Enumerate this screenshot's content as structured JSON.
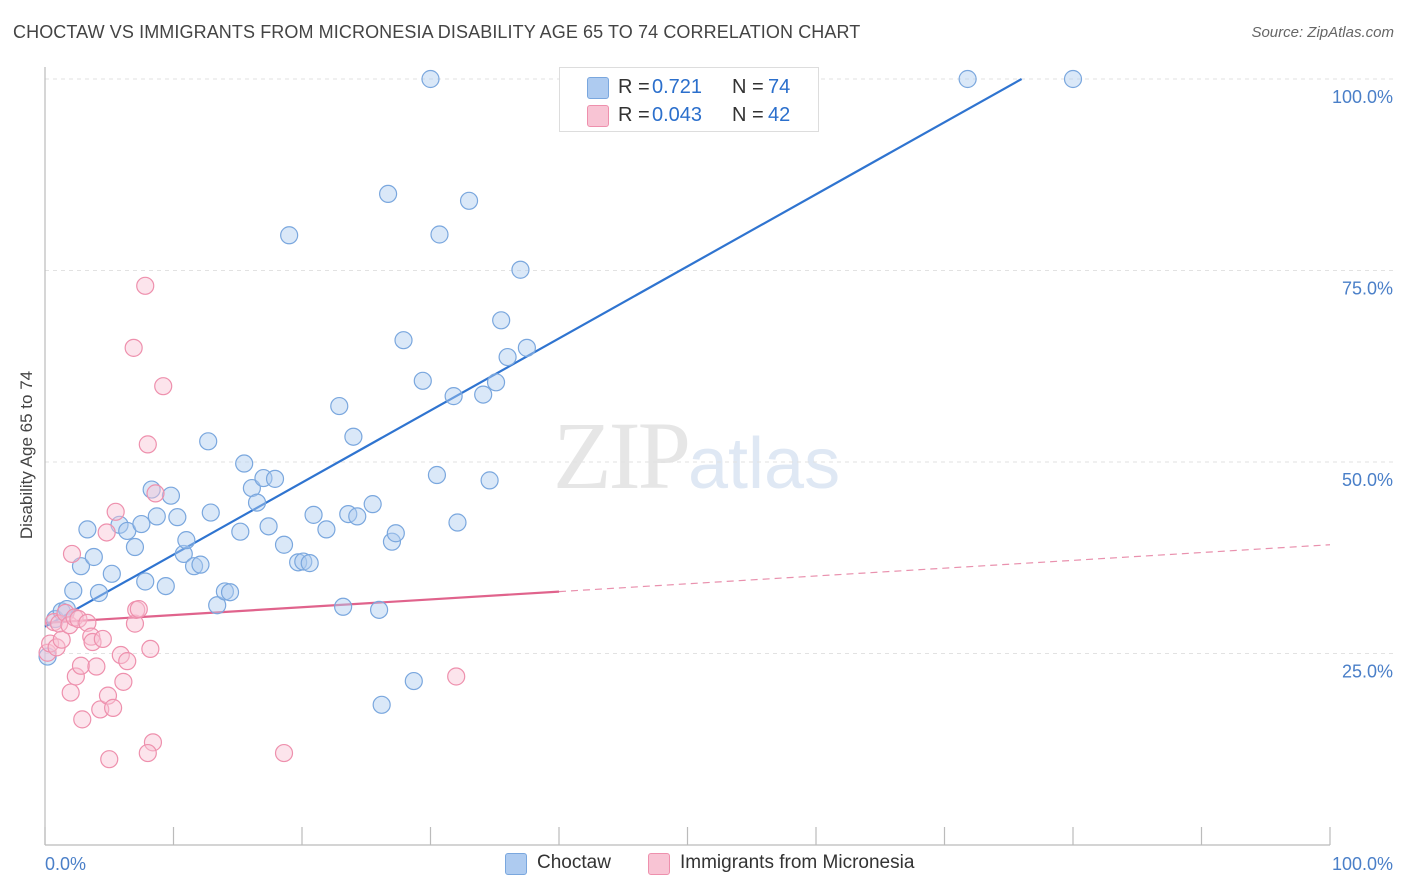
{
  "title": "CHOCTAW VS IMMIGRANTS FROM MICRONESIA DISABILITY AGE 65 TO 74 CORRELATION CHART",
  "source": "Source: ZipAtlas.com",
  "watermark": {
    "zip": "ZIP",
    "atlas": "atlas"
  },
  "legend": {
    "rows": [
      {
        "r_label": "R =",
        "r_value": "0.721",
        "n_label": "N =",
        "n_value": "74",
        "color": "#aecbf0",
        "border": "#7aa7de"
      },
      {
        "r_label": "R =",
        "r_value": "0.043",
        "n_label": "N =",
        "n_value": "42",
        "color": "#f8c4d4",
        "border": "#ee90ad"
      }
    ]
  },
  "bottom_legend": [
    {
      "label": "Choctaw",
      "color": "#aecbf0",
      "border": "#7aa7de"
    },
    {
      "label": "Immigrants from Micronesia",
      "color": "#f8c4d4",
      "border": "#ee90ad"
    }
  ],
  "chart_data": {
    "type": "scatter",
    "title": "CHOCTAW VS IMMIGRANTS FROM MICRONESIA DISABILITY AGE 65 TO 74 CORRELATION CHART",
    "xlabel": "",
    "ylabel": "Disability Age 65 to 74",
    "xlim": [
      0,
      100
    ],
    "ylim": [
      0,
      100
    ],
    "x_tick_labels": [
      "0.0%",
      "100.0%"
    ],
    "y_ticks": [
      25,
      50,
      75,
      100
    ],
    "y_tick_labels": [
      "25.0%",
      "50.0%",
      "75.0%",
      "100.0%"
    ],
    "grid": "horizontal dashed",
    "series": [
      {
        "name": "Choctaw",
        "color": "#7aa7de",
        "fill": "rgba(174,203,240,0.45)",
        "line_color": "#2f74d0",
        "trend": {
          "x0": 0,
          "y0": 28.5,
          "x1": 76,
          "y1": 100,
          "dashed_from": null
        },
        "points": [
          [
            0.2,
            24.6
          ],
          [
            0.8,
            29.5
          ],
          [
            1.3,
            30.5
          ],
          [
            1.7,
            30.8
          ],
          [
            2.2,
            33.2
          ],
          [
            2.8,
            36.4
          ],
          [
            3.3,
            41.2
          ],
          [
            3.8,
            37.6
          ],
          [
            4.2,
            32.9
          ],
          [
            5.2,
            35.4
          ],
          [
            5.8,
            41.8
          ],
          [
            6.4,
            41.0
          ],
          [
            7.0,
            38.9
          ],
          [
            7.5,
            41.9
          ],
          [
            7.8,
            34.4
          ],
          [
            8.3,
            46.4
          ],
          [
            8.7,
            42.9
          ],
          [
            9.4,
            33.8
          ],
          [
            9.8,
            45.6
          ],
          [
            10.3,
            42.8
          ],
          [
            10.8,
            38.0
          ],
          [
            11.0,
            39.8
          ],
          [
            11.6,
            36.4
          ],
          [
            12.1,
            36.6
          ],
          [
            12.7,
            52.7
          ],
          [
            12.9,
            43.4
          ],
          [
            13.4,
            31.3
          ],
          [
            14.0,
            33.1
          ],
          [
            14.4,
            33.0
          ],
          [
            15.2,
            40.9
          ],
          [
            15.5,
            49.8
          ],
          [
            16.1,
            46.6
          ],
          [
            16.5,
            44.7
          ],
          [
            17.0,
            47.9
          ],
          [
            17.4,
            41.6
          ],
          [
            17.9,
            47.8
          ],
          [
            18.6,
            39.2
          ],
          [
            19.0,
            79.6
          ],
          [
            19.7,
            36.9
          ],
          [
            20.1,
            37.0
          ],
          [
            20.6,
            36.8
          ],
          [
            20.9,
            43.1
          ],
          [
            21.9,
            41.2
          ],
          [
            22.9,
            57.3
          ],
          [
            23.2,
            31.1
          ],
          [
            23.6,
            43.2
          ],
          [
            24.0,
            53.3
          ],
          [
            24.3,
            42.9
          ],
          [
            25.5,
            44.5
          ],
          [
            26.0,
            30.7
          ],
          [
            26.2,
            18.3
          ],
          [
            26.7,
            85.0
          ],
          [
            27.0,
            39.6
          ],
          [
            27.3,
            40.7
          ],
          [
            27.9,
            65.9
          ],
          [
            28.7,
            21.4
          ],
          [
            29.4,
            60.6
          ],
          [
            30.5,
            48.3
          ],
          [
            30.7,
            79.7
          ],
          [
            31.8,
            58.6
          ],
          [
            32.1,
            42.1
          ],
          [
            33.0,
            84.1
          ],
          [
            34.1,
            58.8
          ],
          [
            34.6,
            47.6
          ],
          [
            35.1,
            60.4
          ],
          [
            35.5,
            68.5
          ],
          [
            36.0,
            63.7
          ],
          [
            37.0,
            75.1
          ],
          [
            37.5,
            64.9
          ],
          [
            30.0,
            100
          ],
          [
            42.4,
            100
          ],
          [
            71.8,
            100
          ],
          [
            80.0,
            100
          ],
          [
            44.6,
            100
          ]
        ]
      },
      {
        "name": "Immigrants from Micronesia",
        "color": "#ee90ad",
        "fill": "rgba(248,196,212,0.45)",
        "line_color": "#e0638c",
        "trend": {
          "x0": 0,
          "y0": 29.0,
          "x1": 100,
          "y1": 39.2,
          "dashed_from": 40
        },
        "points": [
          [
            0.2,
            25.1
          ],
          [
            0.4,
            26.3
          ],
          [
            0.7,
            29.1
          ],
          [
            0.9,
            25.8
          ],
          [
            1.1,
            28.9
          ],
          [
            1.3,
            26.8
          ],
          [
            1.6,
            30.3
          ],
          [
            1.9,
            28.7
          ],
          [
            2.0,
            19.9
          ],
          [
            2.1,
            38.0
          ],
          [
            2.3,
            29.7
          ],
          [
            2.4,
            22.0
          ],
          [
            2.6,
            29.5
          ],
          [
            2.8,
            23.4
          ],
          [
            2.9,
            16.4
          ],
          [
            3.3,
            29.0
          ],
          [
            3.6,
            27.2
          ],
          [
            3.7,
            26.5
          ],
          [
            4.0,
            23.3
          ],
          [
            4.3,
            17.7
          ],
          [
            4.5,
            26.9
          ],
          [
            4.8,
            40.8
          ],
          [
            4.9,
            19.5
          ],
          [
            5.0,
            11.2
          ],
          [
            5.3,
            17.9
          ],
          [
            5.5,
            43.5
          ],
          [
            5.9,
            24.8
          ],
          [
            6.1,
            21.3
          ],
          [
            6.4,
            24.0
          ],
          [
            6.9,
            64.9
          ],
          [
            7.0,
            28.9
          ],
          [
            7.1,
            30.7
          ],
          [
            7.3,
            30.8
          ],
          [
            7.8,
            73.0
          ],
          [
            8.0,
            52.3
          ],
          [
            8.2,
            25.6
          ],
          [
            8.4,
            13.4
          ],
          [
            8.6,
            45.9
          ],
          [
            9.2,
            59.9
          ],
          [
            18.6,
            12.0
          ],
          [
            32.0,
            22.0
          ],
          [
            8.0,
            12.0
          ]
        ]
      }
    ]
  }
}
